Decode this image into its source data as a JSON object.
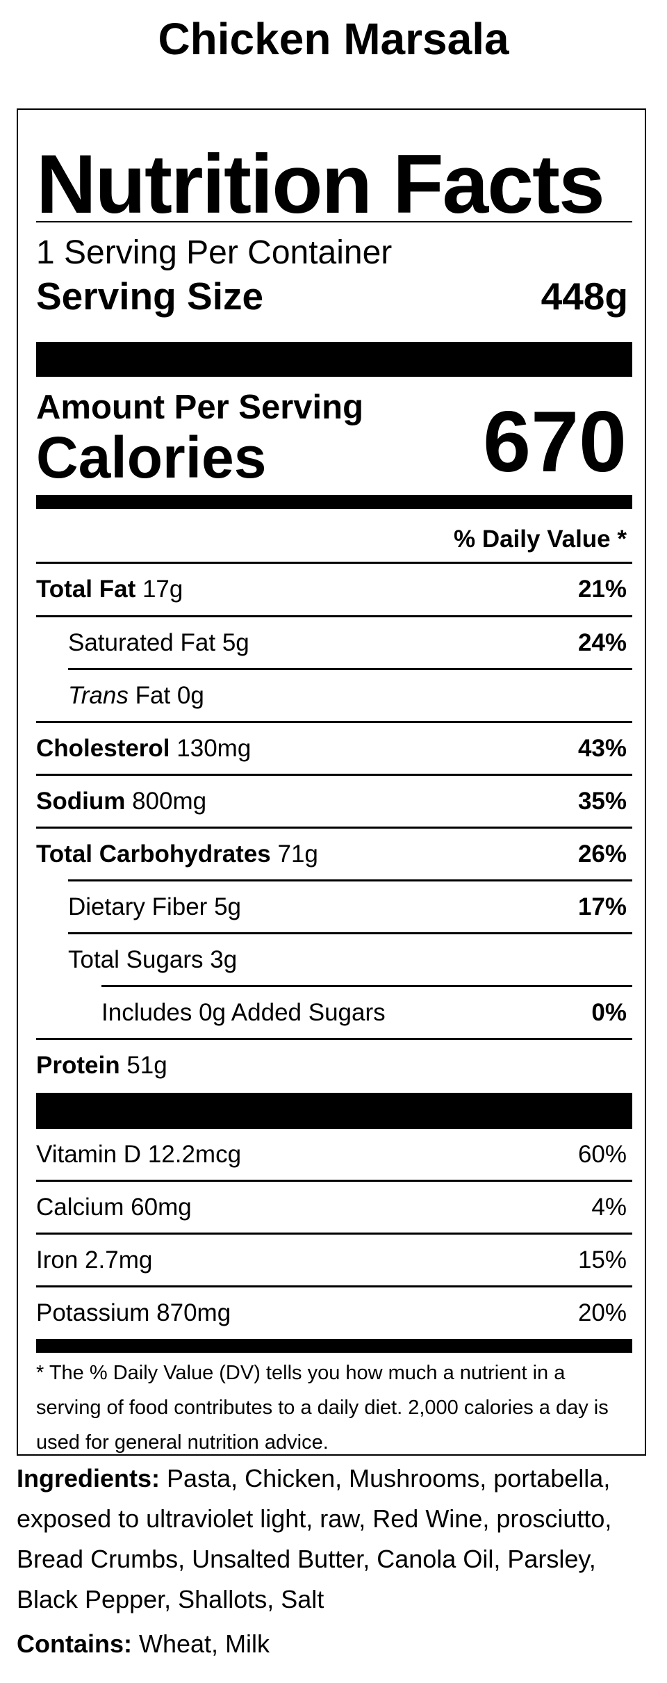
{
  "product_name": "Chicken Marsala",
  "label": {
    "heading": "Nutrition Facts",
    "servings_per_container": "1 Serving Per Container",
    "serving_size_label": "Serving Size",
    "serving_size_value": "448g",
    "amount_per_serving_label": "Amount Per Serving",
    "calories_label": "Calories",
    "calories_value": "670",
    "daily_value_header": "% Daily Value *",
    "nutrients": [
      {
        "name": "Total Fat",
        "amount": "17g",
        "dv": "21%"
      },
      {
        "name": "Saturated Fat",
        "amount": "5g",
        "dv": "24%"
      },
      {
        "name": "Trans",
        "suffix": "Fat",
        "amount": "0g",
        "dv": ""
      },
      {
        "name": "Cholesterol",
        "amount": "130mg",
        "dv": "43%"
      },
      {
        "name": "Sodium",
        "amount": "800mg",
        "dv": "35%"
      },
      {
        "name": "Total Carbohydrates",
        "amount": "71g",
        "dv": "26%"
      },
      {
        "name": "Dietary Fiber",
        "amount": "5g",
        "dv": "17%"
      },
      {
        "name": "Total Sugars",
        "amount": "3g",
        "dv": ""
      },
      {
        "name": "Includes 0g Added Sugars",
        "amount": "",
        "dv": "0%"
      },
      {
        "name": "Protein",
        "amount": "51g",
        "dv": ""
      }
    ],
    "vitamins": [
      {
        "name": "Vitamin D",
        "amount": "12.2mcg",
        "dv": "60%"
      },
      {
        "name": "Calcium",
        "amount": "60mg",
        "dv": "4%"
      },
      {
        "name": "Iron",
        "amount": "2.7mg",
        "dv": "15%"
      },
      {
        "name": "Potassium",
        "amount": "870mg",
        "dv": "20%"
      }
    ],
    "footnote": "* The % Daily Value (DV) tells you how much a nutrient in a serving of food contributes to a daily diet. 2,000 calories a day is used for general nutrition advice."
  },
  "ingredients": {
    "label": "Ingredients:",
    "text": "Pasta, Chicken, Mushrooms, portabella, exposed to ultraviolet light, raw, Red Wine, prosciutto, Bread Crumbs, Unsalted Butter, Canola Oil, Parsley, Black Pepper, Shallots, Salt"
  },
  "contains": {
    "label": "Contains:",
    "text": "Wheat, Milk"
  }
}
